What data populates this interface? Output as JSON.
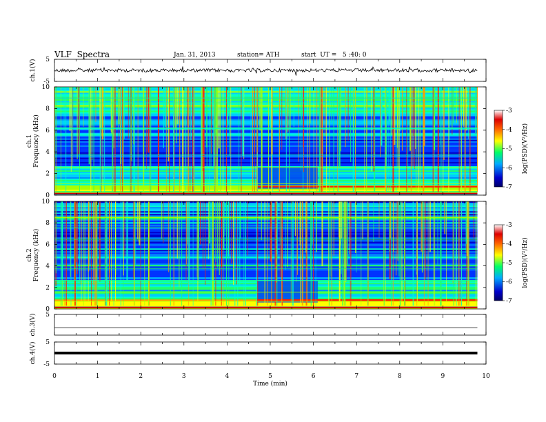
{
  "header": {
    "title": "VLF  Spectra",
    "date": "Jan. 31, 2013",
    "station": "station= ATH",
    "start": "start  UT =   5 :40: 0"
  },
  "chart_data": [
    {
      "type": "line",
      "panel": "ch1-waveform",
      "ylabel": "ch.1(V)",
      "ylim": [
        -5,
        5
      ],
      "y_ticks": [
        "5",
        "-5"
      ],
      "series": [
        {
          "x": [
            0,
            9.8
          ],
          "y": [
            0,
            0
          ],
          "style": "noisy trace near 0 V"
        }
      ]
    },
    {
      "type": "heatmap",
      "panel": "ch1-spectrogram",
      "ylabel": "ch.1\nFrequency (kHz)",
      "ylim": [
        0,
        10
      ],
      "y_ticks": [
        "10",
        "8",
        "6",
        "4",
        "2",
        "0"
      ],
      "xlim": [
        0,
        10
      ],
      "data_extent_min": 9.8,
      "colorbar": {
        "label": "log(PSD)(V²/Hz)",
        "range": [
          -7,
          -3
        ],
        "ticks": [
          "-3",
          "-4",
          "-5",
          "-6",
          "-7"
        ]
      }
    },
    {
      "type": "heatmap",
      "panel": "ch2-spectrogram",
      "ylabel": "ch.2\nFrequency (kHz)",
      "ylim": [
        0,
        10
      ],
      "y_ticks": [
        "10",
        "8",
        "6",
        "4",
        "2",
        "0"
      ],
      "xlim": [
        0,
        10
      ],
      "data_extent_min": 9.8,
      "colorbar": {
        "label": "log(PSD)(V²/Hz)",
        "range": [
          -7,
          -3
        ],
        "ticks": [
          "-3",
          "-4",
          "-5",
          "-6",
          "-7"
        ]
      }
    },
    {
      "type": "line",
      "panel": "ch3-waveform",
      "ylabel": "ch.3(V)",
      "ylim": [
        -5,
        5
      ],
      "y_ticks": [
        "5"
      ],
      "series": [
        {
          "x": [
            0,
            9.8
          ],
          "y": [
            -1.5,
            -1.5
          ],
          "style": "flat trace"
        }
      ]
    },
    {
      "type": "line",
      "panel": "ch4-waveform",
      "ylabel": "ch.4(V)",
      "ylim": [
        -5,
        5
      ],
      "y_ticks": [
        "5",
        "-5"
      ],
      "series": [
        {
          "x": [
            0,
            9.8
          ],
          "y": [
            0,
            0
          ],
          "style": "thick flat trace"
        }
      ]
    }
  ],
  "xaxis": {
    "label": "Time  (min)",
    "ticks": [
      "0",
      "1",
      "2",
      "3",
      "4",
      "5",
      "6",
      "7",
      "8",
      "9",
      "10"
    ],
    "range": [
      0,
      10
    ]
  }
}
